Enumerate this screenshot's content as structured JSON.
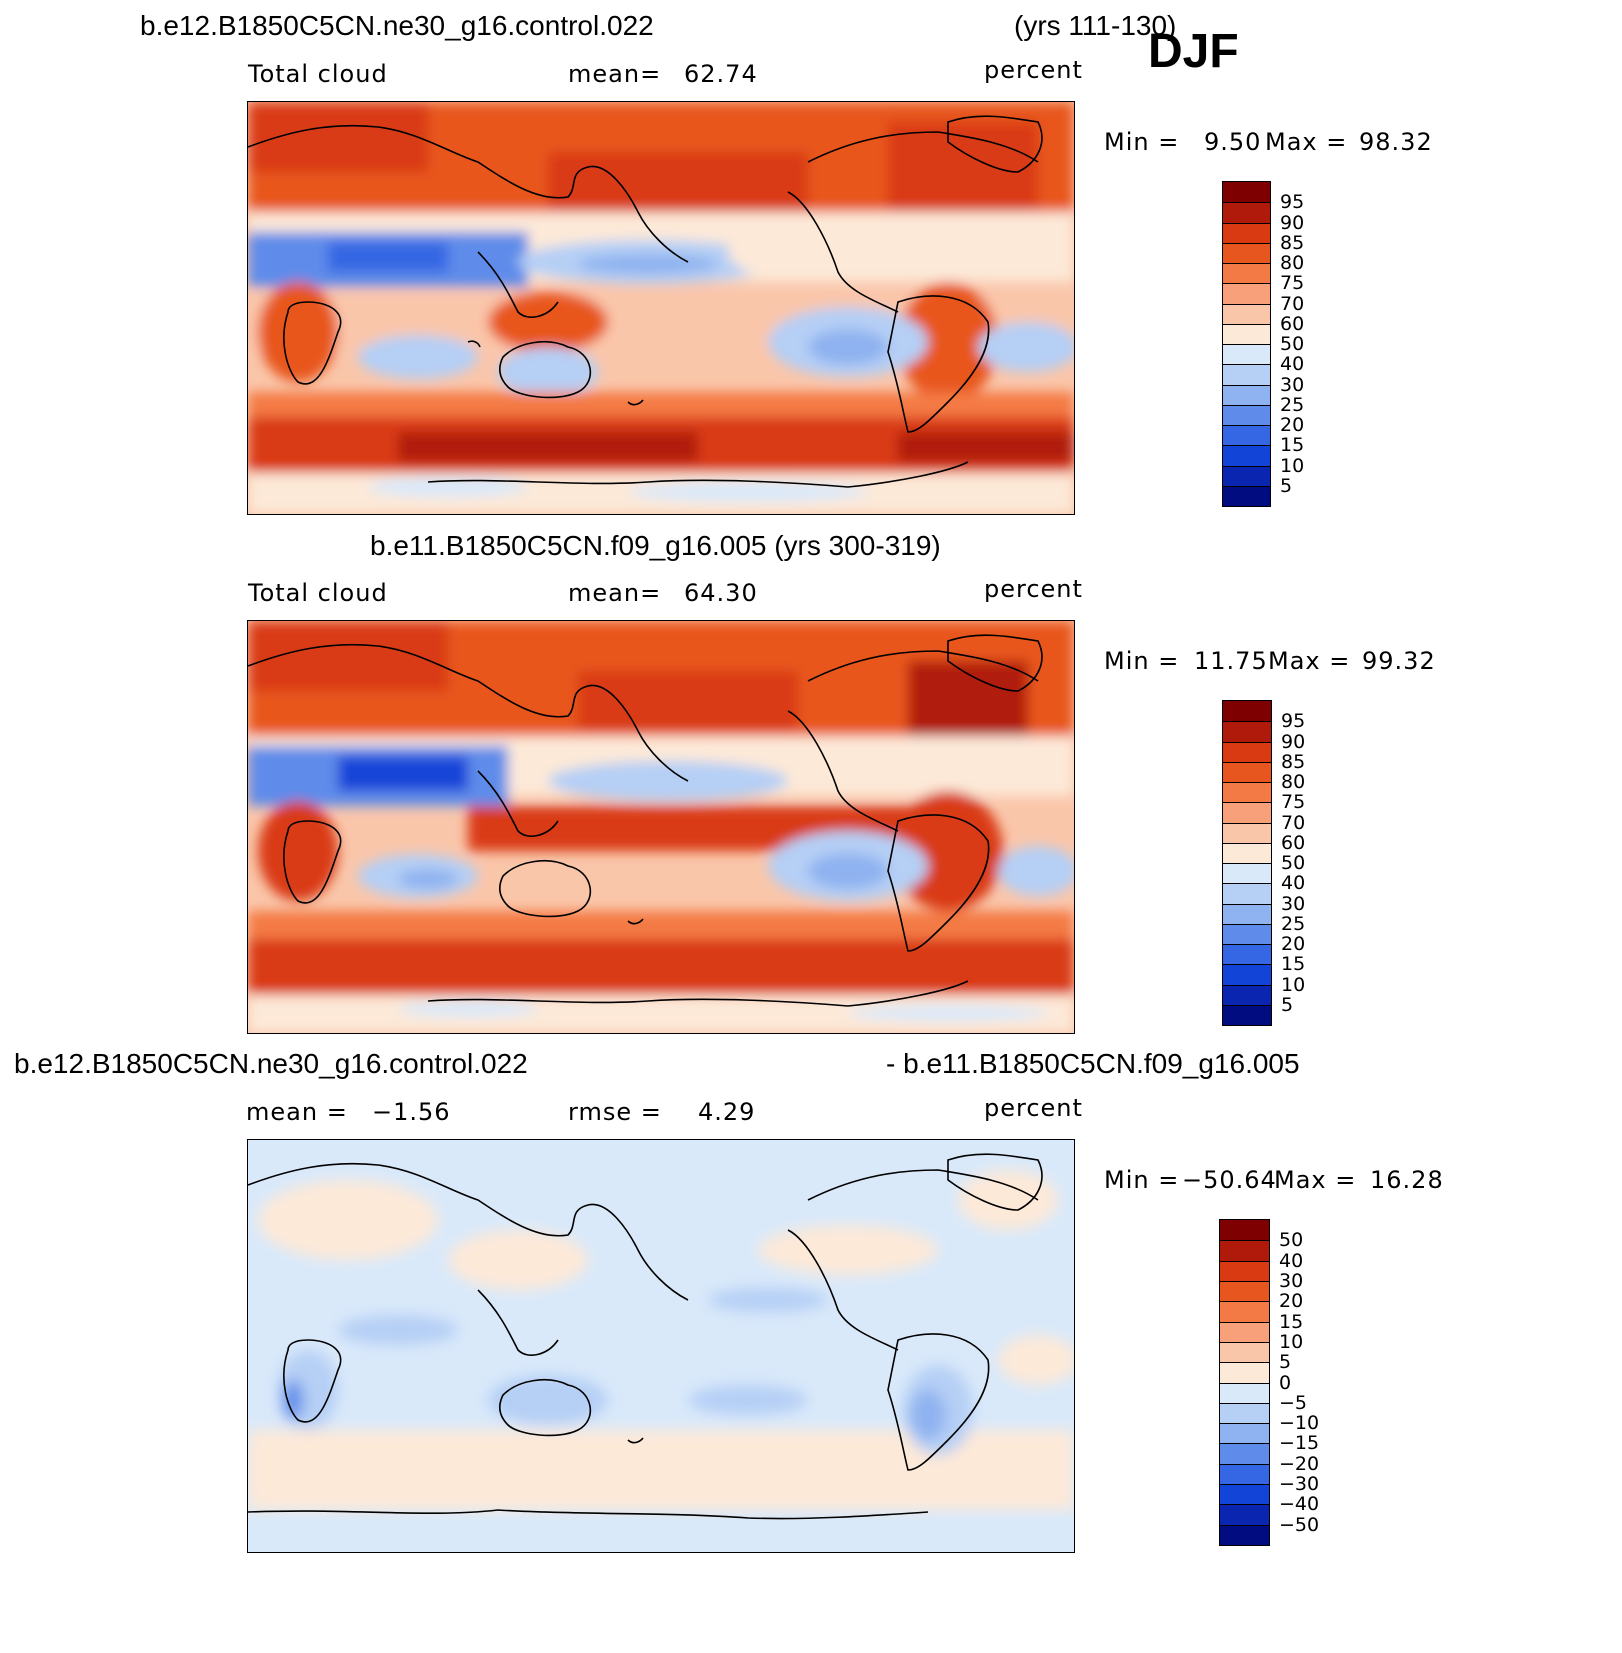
{
  "season": "DJF",
  "panels": [
    {
      "case_title": "b.e12.B1850C5CN.ne30_g16.control.022",
      "years": "(yrs 111-130)",
      "variable": "Total cloud",
      "stat_label": "mean=",
      "stat_value": "62.74",
      "units": "percent",
      "min_label": "Min =",
      "min_value": "9.50",
      "max_label": "Max =",
      "max_value": "98.32",
      "levels": [
        "95",
        "90",
        "85",
        "80",
        "75",
        "70",
        "60",
        "50",
        "40",
        "30",
        "25",
        "20",
        "15",
        "10",
        "5"
      ]
    },
    {
      "case_title": "b.e11.B1850C5CN.f09_g16.005 (yrs 300-319)",
      "variable": "Total cloud",
      "stat_label": "mean=",
      "stat_value": "64.30",
      "units": "percent",
      "min_label": "Min =",
      "min_value": "11.75",
      "max_label": "Max =",
      "max_value": "99.32",
      "levels": [
        "95",
        "90",
        "85",
        "80",
        "75",
        "70",
        "60",
        "50",
        "40",
        "30",
        "25",
        "20",
        "15",
        "10",
        "5"
      ]
    },
    {
      "case_title_left": "b.e12.B1850C5CN.ne30_g16.control.022",
      "case_title_right": "- b.e11.B1850C5CN.f09_g16.005",
      "mean_label": "mean =",
      "mean_value": "−1.56",
      "rmse_label": "rmse =",
      "rmse_value": "4.29",
      "units": "percent",
      "min_label": "Min =",
      "min_value": "−50.64",
      "max_label": "Max =",
      "max_value": "16.28",
      "levels": [
        "50",
        "40",
        "30",
        "20",
        "15",
        "10",
        "5",
        "0",
        "−5",
        "−10",
        "−15",
        "−20",
        "−30",
        "−40",
        "−50"
      ]
    }
  ],
  "colors": {
    "palette": [
      "#7f0000",
      "#b01a0a",
      "#d93a12",
      "#e8561f",
      "#f47a45",
      "#f8a07a",
      "#fac6aa",
      "#fde9d8",
      "#d9e9fa",
      "#b5cff5",
      "#8fb2f0",
      "#5f8cea",
      "#3566e3",
      "#1244d8",
      "#0a26b0",
      "#000c80"
    ],
    "ocean_mid": "#fac6aa",
    "diff_base": "#fde9d8",
    "diff_blue": "#d9e9fa"
  },
  "chart_data": [
    {
      "type": "heatmap",
      "title": "b.e12.B1850C5CN.ne30_g16.control.022 (yrs 111-130) — Total cloud",
      "units": "percent",
      "mean": 62.74,
      "min": 9.5,
      "max": 98.32,
      "contour_levels": [
        5,
        10,
        15,
        20,
        25,
        30,
        40,
        50,
        60,
        70,
        75,
        80,
        85,
        90,
        95
      ],
      "xlabel": "",
      "ylabel": ""
    },
    {
      "type": "heatmap",
      "title": "b.e11.B1850C5CN.f09_g16.005 (yrs 300-319) — Total cloud",
      "units": "percent",
      "mean": 64.3,
      "min": 11.75,
      "max": 99.32,
      "contour_levels": [
        5,
        10,
        15,
        20,
        25,
        30,
        40,
        50,
        60,
        70,
        75,
        80,
        85,
        90,
        95
      ],
      "xlabel": "",
      "ylabel": ""
    },
    {
      "type": "heatmap",
      "title": "b.e12.B1850C5CN.ne30_g16.control.022 - b.e11.B1850C5CN.f09_g16.005",
      "units": "percent",
      "mean": -1.56,
      "rmse": 4.29,
      "min": -50.64,
      "max": 16.28,
      "contour_levels": [
        -50,
        -40,
        -30,
        -20,
        -15,
        -10,
        -5,
        0,
        5,
        10,
        15,
        20,
        30,
        40,
        50
      ],
      "xlabel": "",
      "ylabel": ""
    }
  ]
}
